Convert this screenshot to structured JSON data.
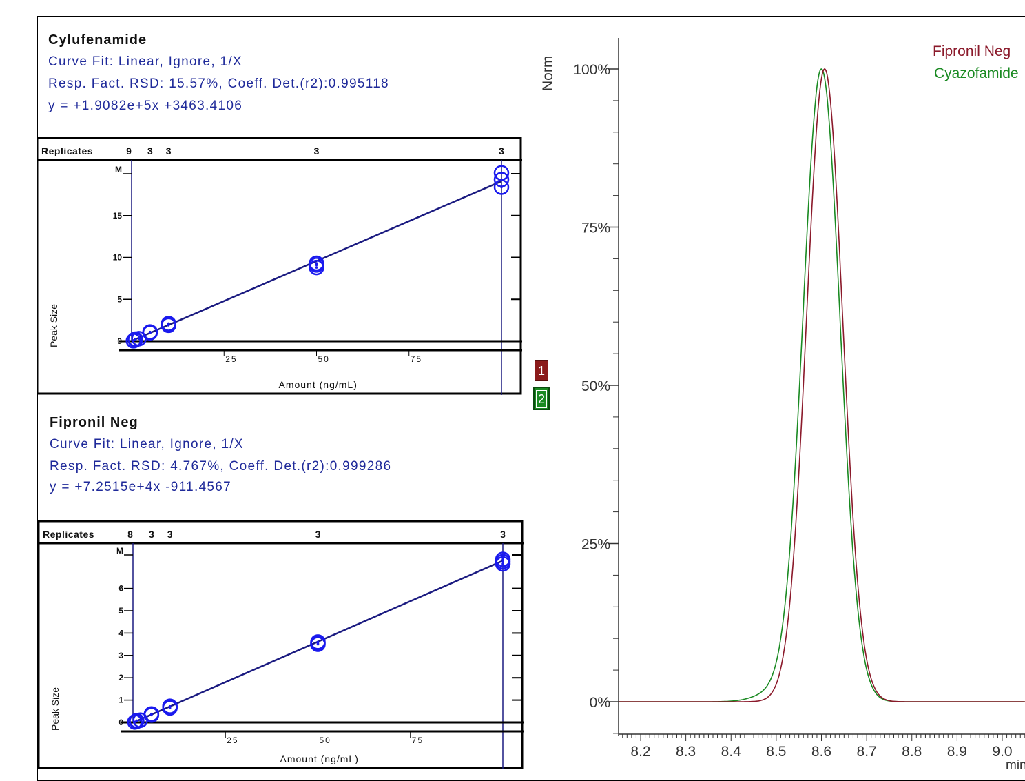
{
  "calibrations": [
    {
      "name": "Cylufenamide",
      "curve_fit": "Curve Fit: Linear, Ignore, 1/X",
      "resp_fact": "Resp. Fact. RSD:  15.57%,    Coeff. Det.(r2):0.995118",
      "equation": "y =  +1.9082e+5x +3463.4106",
      "replicates_label": "Replicates",
      "replicates": [
        "9",
        "3",
        "3",
        "3",
        "3"
      ],
      "y_label": "Peak Size",
      "x_label": "Amount (ng/mL)",
      "y_ticks": [
        "0",
        "5",
        "10",
        "15",
        "M"
      ],
      "x_ticks": [
        "25",
        "50",
        "75"
      ]
    },
    {
      "name": "Fipronil Neg",
      "curve_fit": "Curve Fit: Linear, Ignore, 1/X",
      "resp_fact": "Resp. Fact. RSD:  4.767%,    Coeff. Det.(r2):0.999286",
      "equation": "y =  +7.2515e+4x -911.4567",
      "replicates_label": "Replicates",
      "replicates": [
        "8",
        "3",
        "3",
        "3",
        "3"
      ],
      "y_label": "Peak Size",
      "x_label": "Amount (ng/mL)",
      "y_ticks": [
        "0",
        "1",
        "2",
        "3",
        "4",
        "5",
        "6",
        "M"
      ],
      "x_ticks": [
        "25",
        "50",
        "75"
      ]
    }
  ],
  "chart_data": [
    {
      "type": "scatter",
      "title": "Cylufenamide",
      "xlabel": "Amount (ng/mL)",
      "ylabel": "Peak Size",
      "xlim": [
        0,
        100
      ],
      "ylim": [
        0,
        20
      ],
      "x_ticks": [
        25,
        50,
        75
      ],
      "y_ticks": [
        0,
        5,
        10,
        15
      ],
      "points": [
        [
          0.5,
          0.05
        ],
        [
          1,
          0.15
        ],
        [
          1,
          0.25
        ],
        [
          2,
          0.3
        ],
        [
          5,
          1.0
        ],
        [
          5,
          1.1
        ],
        [
          10,
          1.9
        ],
        [
          10,
          2.1
        ],
        [
          10,
          2.0
        ],
        [
          50,
          8.8
        ],
        [
          50,
          9.1
        ],
        [
          50,
          9.3
        ],
        [
          100,
          18.4
        ],
        [
          100,
          19.3
        ],
        [
          100,
          20.1
        ]
      ],
      "fit_line": [
        [
          0,
          0.03
        ],
        [
          100,
          19.1
        ]
      ]
    },
    {
      "type": "scatter",
      "title": "Fipronil Neg",
      "xlabel": "Amount (ng/mL)",
      "ylabel": "Peak Size",
      "xlim": [
        0,
        100
      ],
      "ylim": [
        0,
        7.5
      ],
      "x_ticks": [
        25,
        50,
        75
      ],
      "y_ticks": [
        0,
        1,
        2,
        3,
        4,
        5,
        6
      ],
      "points": [
        [
          0.5,
          0.02
        ],
        [
          1,
          0.05
        ],
        [
          1,
          0.08
        ],
        [
          2,
          0.1
        ],
        [
          5,
          0.33
        ],
        [
          5,
          0.38
        ],
        [
          10,
          0.65
        ],
        [
          10,
          0.72
        ],
        [
          10,
          0.7
        ],
        [
          50,
          3.5
        ],
        [
          50,
          3.6
        ],
        [
          50,
          3.55
        ],
        [
          100,
          7.1
        ],
        [
          100,
          7.3
        ],
        [
          100,
          7.2
        ]
      ],
      "fit_line": [
        [
          0,
          -0.01
        ],
        [
          100,
          7.24
        ]
      ]
    },
    {
      "type": "line",
      "xlabel": "min",
      "ylabel": "Norm",
      "xlim": [
        8.15,
        9.1
      ],
      "ylim": [
        -0.05,
        1.05
      ],
      "x_ticks": [
        "8.2",
        "8.3",
        "8.4",
        "8.5",
        "8.6",
        "8.7",
        "8.8",
        "8.9",
        "9.0"
      ],
      "y_ticks": [
        "0%",
        "25%",
        "50%",
        "75%",
        "100%"
      ],
      "series": [
        {
          "name": "Fipronil Neg",
          "color": "#8b1a2b",
          "peak_x": 8.607,
          "peak_y": 1.0
        },
        {
          "name": "Cyazofamide",
          "color": "#1a8a22",
          "peak_x": 8.6,
          "peak_y": 1.0
        }
      ],
      "legend_numbers": [
        "1",
        "2"
      ]
    }
  ],
  "colors": {
    "calib_blue": "#1a1aee",
    "fit_line": "#1a1a80",
    "cal_text": "#1f2a9a",
    "trace_red": "#8b1a2b",
    "trace_green": "#1a8a22"
  }
}
